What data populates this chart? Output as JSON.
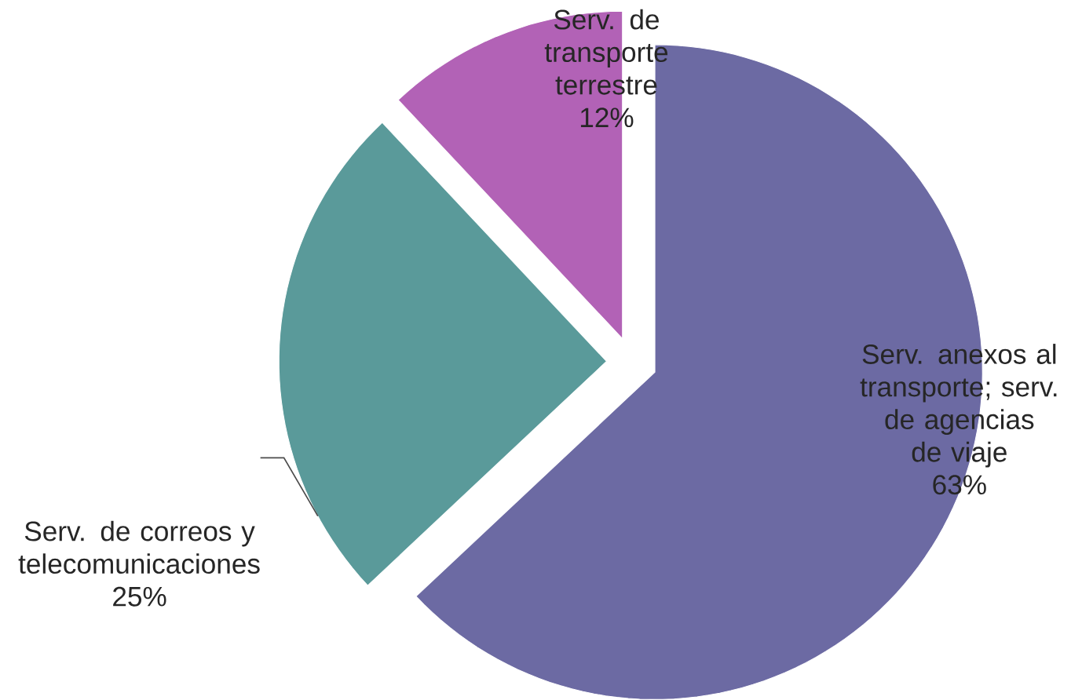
{
  "chart_data": {
    "type": "pie",
    "categories": [
      "Serv. anexos al transporte; serv. de agencias de viaje",
      "Serv. de correos y telecomunicaciones",
      "Serv. de transporte terrestre"
    ],
    "values": [
      63,
      25,
      12
    ],
    "value_labels": [
      "63%",
      "25%",
      "12%"
    ],
    "colors": [
      "#6c6aa3",
      "#5a9a9a",
      "#b262b6"
    ]
  }
}
